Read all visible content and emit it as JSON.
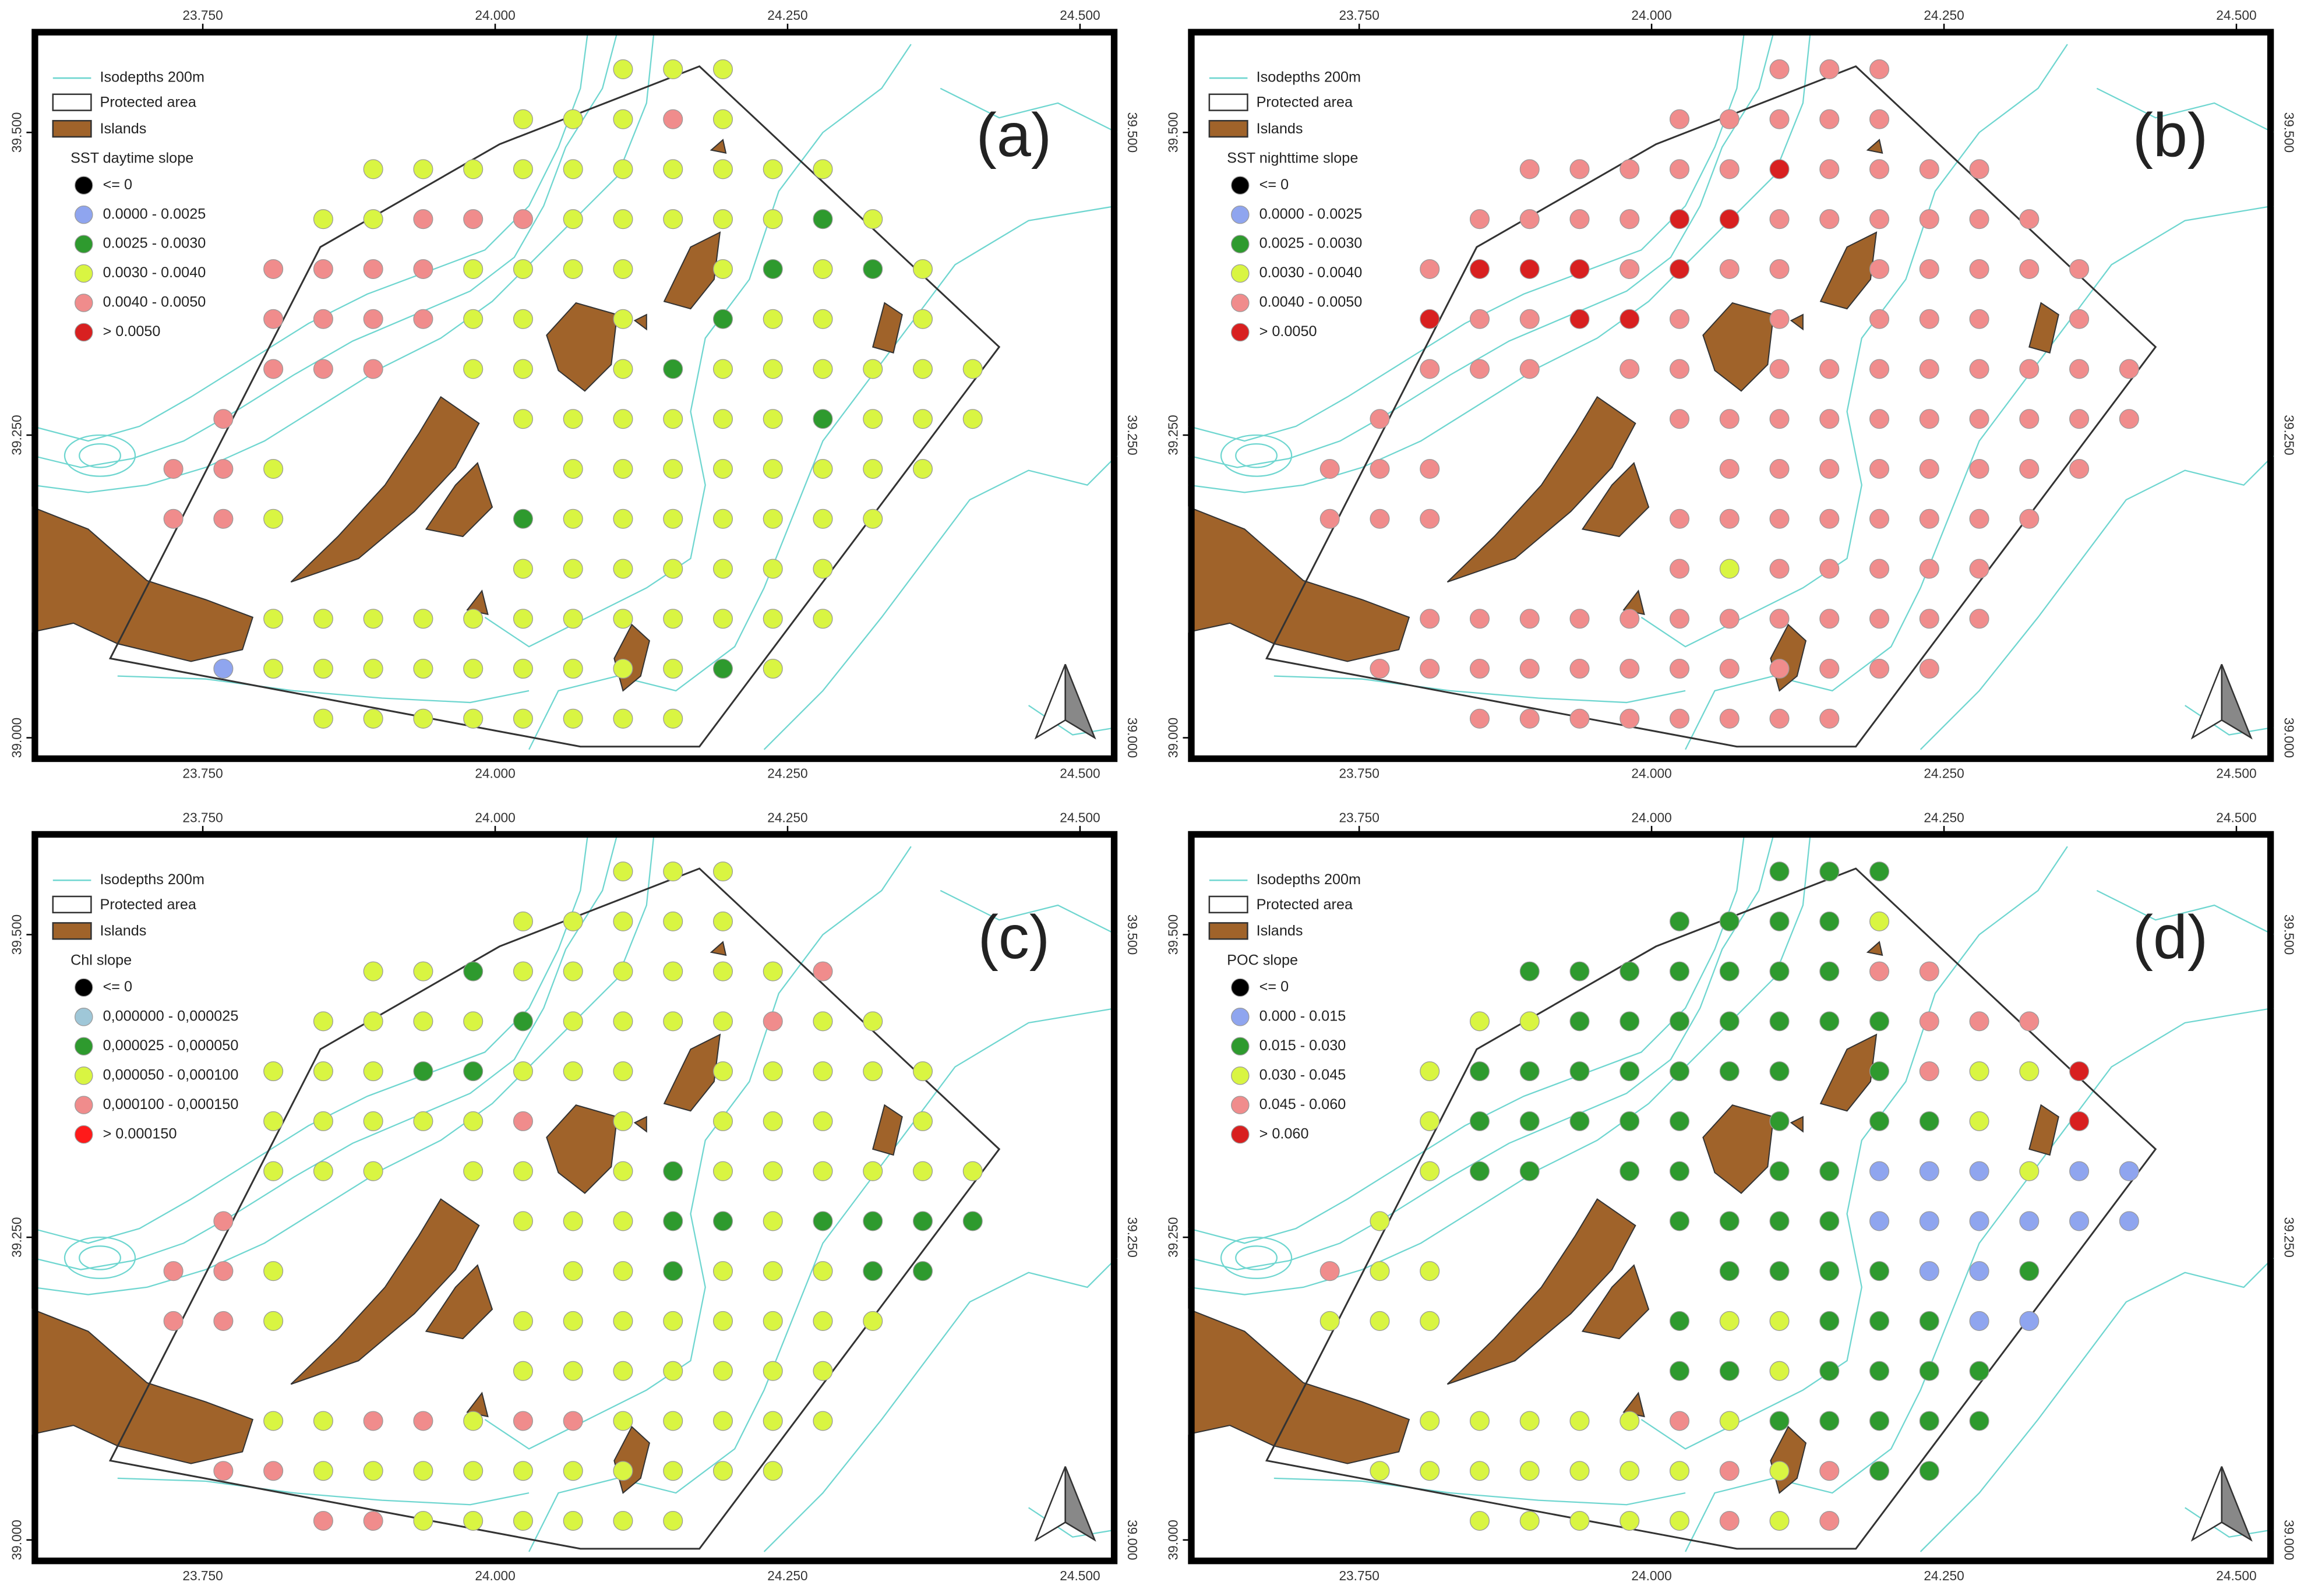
{
  "axes": {
    "x_ticks": [
      {
        "value": 23.75,
        "label": "23.750"
      },
      {
        "value": 24.0,
        "label": "24.000"
      },
      {
        "value": 24.25,
        "label": "24.250"
      },
      {
        "value": 24.5,
        "label": "24.500"
      }
    ],
    "y_ticks": [
      {
        "value": 39.0,
        "label": "39.000"
      },
      {
        "value": 39.25,
        "label": "39.250"
      },
      {
        "value": 39.5,
        "label": "39.500"
      }
    ]
  },
  "legend_common": {
    "isodepths": "Isodepths 200m",
    "protected": "Protected area",
    "islands": "Islands"
  },
  "panels": [
    {
      "label": "(a)",
      "legend_title": "SST daytime slope",
      "classes": [
        {
          "label": "<= 0",
          "color": "#000000"
        },
        {
          "label": "0.0000 - 0.0025",
          "color": "#8fa5ef"
        },
        {
          "label": "0.0025 - 0.0030",
          "color": "#2e9a2e"
        },
        {
          "label": "0.0030 - 0.0040",
          "color": "#d9f542"
        },
        {
          "label": "0.0040 - 0.0050",
          "color": "#f08c8c"
        },
        {
          "label": "> 0.0050",
          "color": "#d82020"
        }
      ],
      "points": [
        [
          null,
          null,
          null,
          null,
          null,
          null,
          null,
          null,
          null,
          3,
          3,
          3,
          null,
          null,
          null,
          null,
          null
        ],
        [
          null,
          null,
          null,
          null,
          null,
          null,
          null,
          3,
          3,
          3,
          4,
          3,
          null,
          null,
          null,
          null,
          null
        ],
        [
          null,
          null,
          null,
          null,
          3,
          3,
          3,
          3,
          3,
          3,
          3,
          3,
          3,
          3,
          null,
          null,
          null
        ],
        [
          null,
          null,
          null,
          3,
          3,
          4,
          4,
          4,
          3,
          3,
          3,
          3,
          3,
          2,
          3,
          null,
          null
        ],
        [
          null,
          null,
          4,
          4,
          4,
          4,
          3,
          3,
          3,
          3,
          null,
          3,
          2,
          3,
          2,
          3,
          null
        ],
        [
          null,
          null,
          4,
          4,
          4,
          4,
          3,
          3,
          null,
          3,
          null,
          2,
          3,
          3,
          null,
          3,
          null
        ],
        [
          null,
          null,
          4,
          4,
          4,
          null,
          3,
          3,
          null,
          3,
          2,
          3,
          3,
          3,
          3,
          3,
          3
        ],
        [
          null,
          4,
          null,
          null,
          null,
          null,
          null,
          3,
          3,
          3,
          3,
          3,
          3,
          2,
          3,
          3,
          3
        ],
        [
          4,
          4,
          3,
          null,
          null,
          null,
          null,
          null,
          3,
          3,
          3,
          3,
          3,
          3,
          3,
          3,
          null
        ],
        [
          4,
          4,
          3,
          null,
          null,
          null,
          null,
          2,
          3,
          3,
          3,
          3,
          3,
          3,
          3,
          null,
          null
        ],
        [
          null,
          null,
          null,
          null,
          null,
          null,
          null,
          3,
          3,
          3,
          3,
          3,
          3,
          3,
          null,
          null,
          null
        ],
        [
          null,
          null,
          3,
          3,
          3,
          3,
          3,
          3,
          3,
          3,
          3,
          3,
          3,
          3,
          null,
          null,
          null
        ],
        [
          null,
          1,
          3,
          3,
          3,
          3,
          3,
          3,
          3,
          3,
          3,
          2,
          3,
          null,
          null,
          null,
          null
        ],
        [
          null,
          null,
          null,
          3,
          3,
          3,
          3,
          3,
          3,
          3,
          3,
          null,
          null,
          null,
          null,
          null,
          null
        ]
      ]
    },
    {
      "label": "(b)",
      "legend_title": "SST nighttime slope",
      "classes": [
        {
          "label": "<= 0",
          "color": "#000000"
        },
        {
          "label": "0.0000 - 0.0025",
          "color": "#8fa5ef"
        },
        {
          "label": "0.0025 - 0.0030",
          "color": "#2e9a2e"
        },
        {
          "label": "0.0030 - 0.0040",
          "color": "#d9f542"
        },
        {
          "label": "0.0040 - 0.0050",
          "color": "#f08c8c"
        },
        {
          "label": "> 0.0050",
          "color": "#d82020"
        }
      ],
      "points": [
        [
          null,
          null,
          null,
          null,
          null,
          null,
          null,
          null,
          null,
          4,
          4,
          4,
          null,
          null,
          null,
          null,
          null
        ],
        [
          null,
          null,
          null,
          null,
          null,
          null,
          null,
          4,
          4,
          4,
          4,
          4,
          null,
          null,
          null,
          null,
          null
        ],
        [
          null,
          null,
          null,
          null,
          4,
          4,
          4,
          4,
          4,
          5,
          4,
          4,
          4,
          4,
          null,
          null,
          null
        ],
        [
          null,
          null,
          null,
          4,
          4,
          4,
          4,
          5,
          5,
          4,
          4,
          4,
          4,
          4,
          4,
          null,
          null
        ],
        [
          null,
          null,
          4,
          5,
          5,
          5,
          4,
          5,
          4,
          4,
          null,
          4,
          4,
          4,
          4,
          4,
          null
        ],
        [
          null,
          null,
          5,
          4,
          4,
          5,
          5,
          4,
          null,
          4,
          null,
          4,
          4,
          4,
          null,
          4,
          null
        ],
        [
          null,
          null,
          4,
          4,
          4,
          null,
          4,
          4,
          null,
          4,
          4,
          4,
          4,
          4,
          4,
          4,
          4
        ],
        [
          null,
          4,
          null,
          null,
          null,
          null,
          null,
          4,
          4,
          4,
          4,
          4,
          4,
          4,
          4,
          4,
          4
        ],
        [
          4,
          4,
          4,
          null,
          null,
          null,
          null,
          null,
          4,
          4,
          4,
          4,
          4,
          4,
          4,
          4,
          null
        ],
        [
          4,
          4,
          4,
          null,
          null,
          null,
          null,
          4,
          4,
          4,
          4,
          4,
          4,
          4,
          4,
          null,
          null
        ],
        [
          null,
          null,
          null,
          null,
          null,
          null,
          null,
          4,
          3,
          4,
          4,
          4,
          4,
          4,
          null,
          null,
          null
        ],
        [
          null,
          null,
          4,
          4,
          4,
          4,
          4,
          4,
          4,
          4,
          4,
          4,
          4,
          4,
          null,
          null,
          null
        ],
        [
          null,
          4,
          4,
          4,
          4,
          4,
          4,
          4,
          4,
          4,
          4,
          4,
          4,
          null,
          null,
          null,
          null
        ],
        [
          null,
          null,
          null,
          4,
          4,
          4,
          4,
          4,
          4,
          4,
          4,
          null,
          null,
          null,
          null,
          null,
          null
        ]
      ]
    },
    {
      "label": "(c)",
      "legend_title": "Chl slope",
      "classes": [
        {
          "label": "<= 0",
          "color": "#000000"
        },
        {
          "label": "0,000000 - 0,000025",
          "color": "#9fc7d8"
        },
        {
          "label": "0,000025 - 0,000050",
          "color": "#2e9a2e"
        },
        {
          "label": "0,000050 - 0,000100",
          "color": "#d9f542"
        },
        {
          "label": "0,000100 - 0,000150",
          "color": "#f08c8c"
        },
        {
          "label": "> 0.000150",
          "color": "#ff1a1a"
        }
      ],
      "points": [
        [
          null,
          null,
          null,
          null,
          null,
          null,
          null,
          null,
          null,
          3,
          3,
          3,
          null,
          null,
          null,
          null,
          null
        ],
        [
          null,
          null,
          null,
          null,
          null,
          null,
          null,
          3,
          3,
          3,
          3,
          3,
          null,
          null,
          null,
          null,
          null
        ],
        [
          null,
          null,
          null,
          null,
          3,
          3,
          2,
          3,
          3,
          3,
          3,
          3,
          3,
          4,
          null,
          null,
          null
        ],
        [
          null,
          null,
          null,
          3,
          3,
          3,
          3,
          2,
          3,
          3,
          3,
          3,
          4,
          3,
          3,
          null,
          null
        ],
        [
          null,
          null,
          3,
          3,
          3,
          2,
          2,
          3,
          3,
          3,
          null,
          3,
          3,
          3,
          3,
          3,
          null
        ],
        [
          null,
          null,
          3,
          3,
          3,
          3,
          3,
          4,
          null,
          3,
          null,
          3,
          3,
          3,
          null,
          3,
          null
        ],
        [
          null,
          null,
          3,
          3,
          3,
          null,
          3,
          3,
          null,
          3,
          2,
          3,
          3,
          3,
          3,
          3,
          3
        ],
        [
          null,
          4,
          null,
          null,
          null,
          null,
          null,
          3,
          3,
          3,
          2,
          2,
          3,
          2,
          2,
          2,
          2
        ],
        [
          4,
          4,
          3,
          null,
          null,
          null,
          null,
          null,
          3,
          3,
          2,
          3,
          3,
          3,
          2,
          2,
          null
        ],
        [
          4,
          4,
          3,
          null,
          null,
          null,
          null,
          3,
          3,
          3,
          3,
          3,
          3,
          3,
          3,
          null,
          null
        ],
        [
          null,
          null,
          null,
          null,
          null,
          null,
          null,
          3,
          3,
          3,
          3,
          3,
          3,
          3,
          null,
          null,
          null
        ],
        [
          null,
          null,
          3,
          3,
          4,
          4,
          3,
          4,
          4,
          3,
          3,
          3,
          3,
          3,
          null,
          null,
          null
        ],
        [
          null,
          4,
          4,
          3,
          3,
          3,
          3,
          3,
          3,
          3,
          3,
          3,
          3,
          null,
          null,
          null,
          null
        ],
        [
          null,
          null,
          null,
          4,
          4,
          3,
          3,
          3,
          3,
          3,
          3,
          null,
          null,
          null,
          null,
          null,
          null
        ]
      ]
    },
    {
      "label": "(d)",
      "legend_title": "POC slope",
      "classes": [
        {
          "label": "<= 0",
          "color": "#000000"
        },
        {
          "label": "0.000 - 0.015",
          "color": "#8fa5ef"
        },
        {
          "label": "0.015 - 0.030",
          "color": "#2e9a2e"
        },
        {
          "label": "0.030 - 0.045",
          "color": "#d9f542"
        },
        {
          "label": "0.045 - 0.060",
          "color": "#f08c8c"
        },
        {
          "label": "> 0.060",
          "color": "#d82020"
        }
      ],
      "points": [
        [
          null,
          null,
          null,
          null,
          null,
          null,
          null,
          null,
          null,
          2,
          2,
          2,
          null,
          null,
          null,
          null,
          null
        ],
        [
          null,
          null,
          null,
          null,
          null,
          null,
          null,
          2,
          2,
          2,
          2,
          3,
          null,
          null,
          null,
          null,
          null
        ],
        [
          null,
          null,
          null,
          null,
          2,
          2,
          2,
          2,
          2,
          2,
          2,
          4,
          4,
          null,
          null,
          null,
          null
        ],
        [
          null,
          null,
          null,
          3,
          3,
          2,
          2,
          2,
          2,
          2,
          2,
          2,
          4,
          4,
          4,
          null,
          null
        ],
        [
          null,
          null,
          3,
          2,
          2,
          2,
          2,
          2,
          2,
          2,
          null,
          2,
          4,
          3,
          3,
          5,
          null
        ],
        [
          null,
          null,
          3,
          2,
          2,
          2,
          2,
          2,
          null,
          2,
          null,
          2,
          2,
          3,
          null,
          5,
          null
        ],
        [
          null,
          null,
          3,
          2,
          2,
          null,
          2,
          2,
          null,
          2,
          2,
          1,
          1,
          1,
          3,
          1,
          1
        ],
        [
          null,
          3,
          null,
          null,
          null,
          null,
          null,
          2,
          2,
          2,
          2,
          1,
          1,
          1,
          1,
          1,
          1
        ],
        [
          4,
          3,
          3,
          null,
          null,
          null,
          null,
          null,
          2,
          2,
          2,
          2,
          1,
          1,
          2,
          null,
          null
        ],
        [
          3,
          3,
          3,
          null,
          null,
          null,
          null,
          2,
          3,
          3,
          2,
          2,
          2,
          1,
          1,
          null,
          null
        ],
        [
          null,
          null,
          null,
          null,
          null,
          null,
          null,
          2,
          2,
          3,
          2,
          2,
          2,
          2,
          null,
          null,
          null
        ],
        [
          null,
          null,
          3,
          3,
          3,
          3,
          3,
          4,
          3,
          2,
          2,
          2,
          2,
          2,
          null,
          null,
          null
        ],
        [
          null,
          3,
          3,
          3,
          3,
          3,
          3,
          3,
          4,
          3,
          4,
          2,
          2,
          null,
          null,
          null,
          null
        ],
        [
          null,
          null,
          null,
          3,
          3,
          3,
          3,
          3,
          4,
          3,
          4,
          null,
          null,
          null,
          null,
          null,
          null
        ]
      ]
    }
  ]
}
